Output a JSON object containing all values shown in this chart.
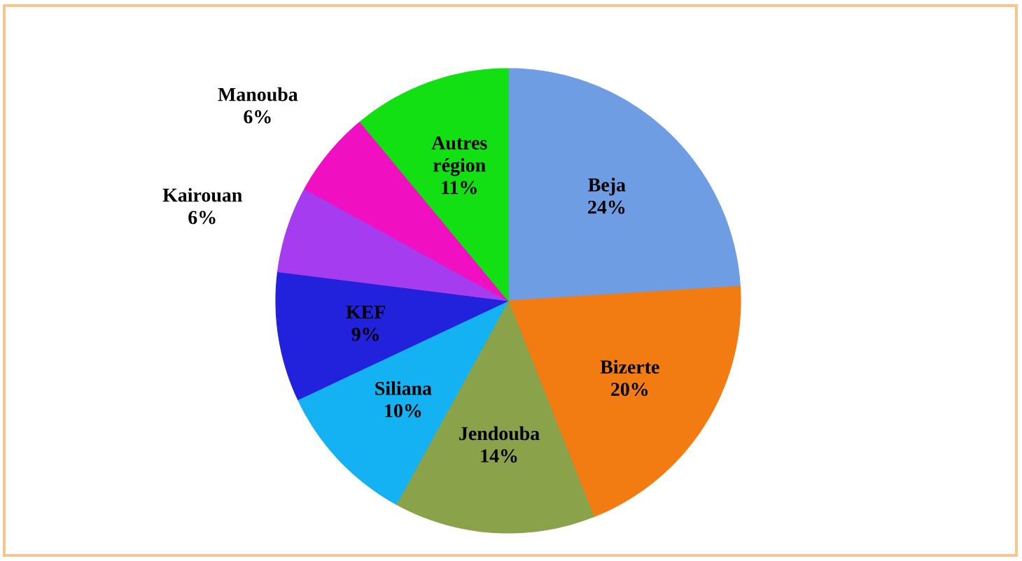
{
  "chart_data": {
    "type": "pie",
    "categories": [
      "Beja",
      "Bizerte",
      "Jendouba",
      "Siliana",
      "KEF",
      "Kairouan",
      "Manouba",
      "Autres région"
    ],
    "values": [
      24,
      20,
      14,
      10,
      9,
      6,
      6,
      11
    ],
    "value_labels": [
      "24%",
      "20%",
      "14%",
      "10%",
      "9%",
      "6%",
      "6%",
      "11%"
    ],
    "colors": [
      "#6f9de3",
      "#f27c12",
      "#8aa24a",
      "#14b2f2",
      "#2222dd",
      "#a63cf0",
      "#f010c2",
      "#12e012"
    ]
  }
}
